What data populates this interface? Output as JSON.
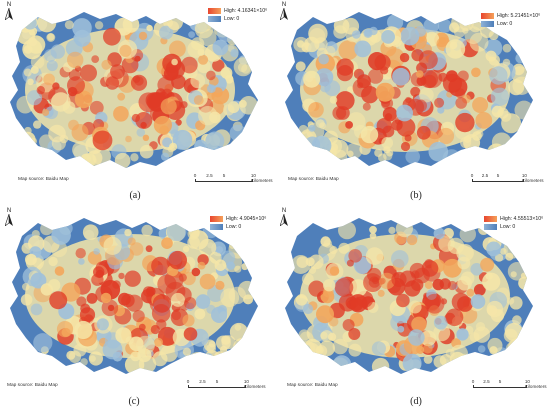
{
  "panels": [
    {
      "id": "a",
      "caption": "(a)",
      "legend_high": "High: 4.16341×10⁶",
      "legend_low": "Low: 0"
    },
    {
      "id": "b",
      "caption": "(b)",
      "legend_high": "High: 5.21451×10⁶",
      "legend_low": "Low: 0"
    },
    {
      "id": "c",
      "caption": "(c)",
      "legend_high": "High: 4.9045×10⁶",
      "legend_low": "Low: 0"
    },
    {
      "id": "d",
      "caption": "(d)",
      "legend_high": "High: 4.55513×10⁶",
      "legend_low": "Low: 0"
    }
  ],
  "common": {
    "north_label": "N",
    "source": "Map source: Baidu Map",
    "scale_ticks": [
      "0",
      "2.5",
      "5",
      "10 Kilometers"
    ]
  },
  "colors": {
    "low": "#4f7fba",
    "mid_low": "#9fc0da",
    "mid": "#f5e6a8",
    "mid_high": "#f3a65b",
    "high": "#e03b26"
  }
}
